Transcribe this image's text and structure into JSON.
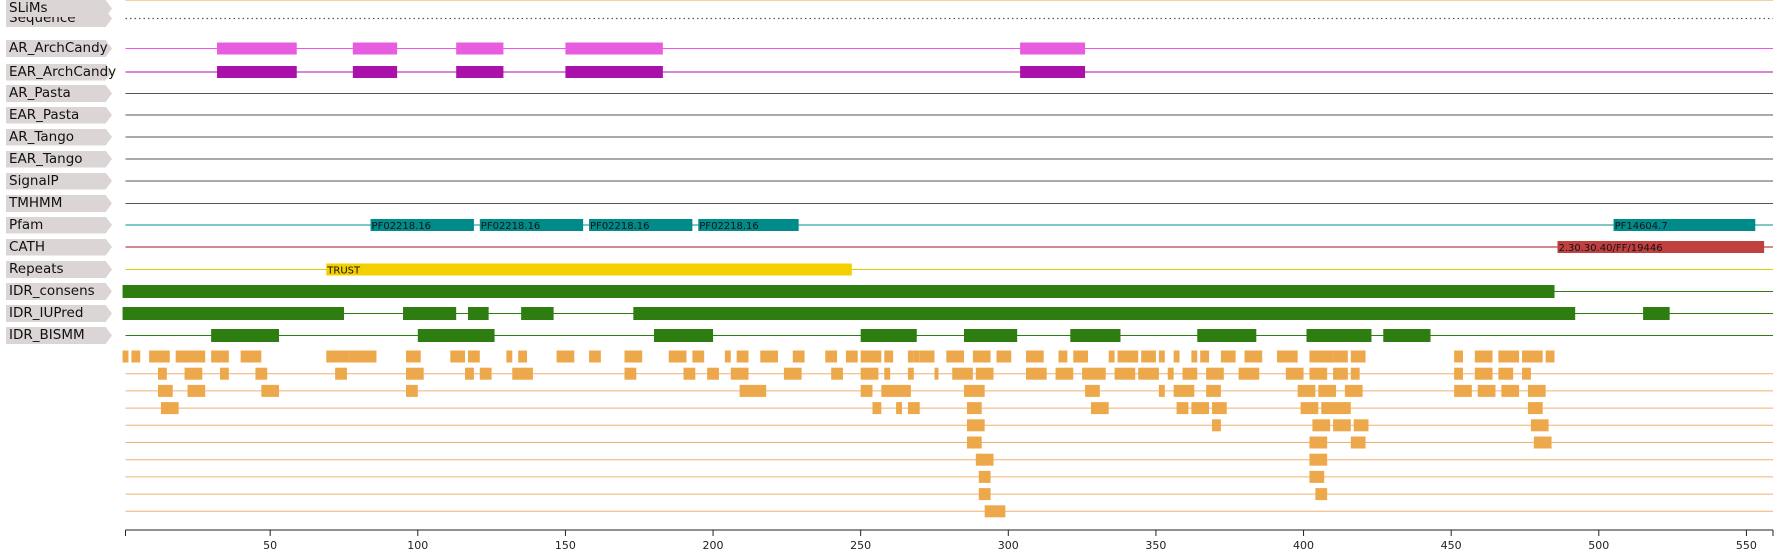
{
  "tracks": [
    {
      "id": "sequence",
      "label": "Sequence",
      "line_color": "#555555",
      "line_style": "dotted",
      "features": []
    },
    {
      "id": "ar_archcandy",
      "label": "AR_ArchCandy",
      "line_color": "#ee55ee",
      "features": [
        {
          "start": 32,
          "end": 59,
          "color": "#e85ce0"
        },
        {
          "start": 78,
          "end": 93,
          "color": "#e85ce0"
        },
        {
          "start": 113,
          "end": 129,
          "color": "#e85ce0"
        },
        {
          "start": 150,
          "end": 183,
          "color": "#e85ce0"
        },
        {
          "start": 304,
          "end": 326,
          "color": "#e85ce0"
        }
      ]
    },
    {
      "id": "ear_archcandy",
      "label": "EAR_ArchCandy",
      "line_color": "#aa10aa",
      "features": [
        {
          "start": 32,
          "end": 59,
          "color": "#aa10aa"
        },
        {
          "start": 78,
          "end": 93,
          "color": "#aa10aa"
        },
        {
          "start": 113,
          "end": 129,
          "color": "#aa10aa"
        },
        {
          "start": 150,
          "end": 183,
          "color": "#aa10aa"
        },
        {
          "start": 304,
          "end": 326,
          "color": "#aa10aa"
        }
      ]
    },
    {
      "id": "ar_pasta",
      "label": "AR_Pasta",
      "line_color": "#555555",
      "features": []
    },
    {
      "id": "ear_pasta",
      "label": "EAR_Pasta",
      "line_color": "#555555",
      "features": []
    },
    {
      "id": "ar_tango",
      "label": "AR_Tango",
      "line_color": "#555555",
      "features": []
    },
    {
      "id": "ear_tango",
      "label": "EAR_Tango",
      "line_color": "#555555",
      "features": []
    },
    {
      "id": "signalp",
      "label": "SignalP",
      "line_color": "#555555",
      "features": []
    },
    {
      "id": "tmhmm",
      "label": "TMHMM",
      "line_color": "#555555",
      "features": []
    },
    {
      "id": "pfam",
      "label": "Pfam",
      "line_color": "#009090",
      "features": [
        {
          "start": 84,
          "end": 119,
          "label": "PF02218.16",
          "color": "#008b8b"
        },
        {
          "start": 121,
          "end": 156,
          "label": "PF02218.16",
          "color": "#008b8b"
        },
        {
          "start": 158,
          "end": 193,
          "label": "PF02218.16",
          "color": "#008b8b"
        },
        {
          "start": 195,
          "end": 229,
          "label": "PF02218.16",
          "color": "#008b8b"
        },
        {
          "start": 505,
          "end": 553,
          "label": "PF14604.7",
          "color": "#008b8b"
        }
      ]
    },
    {
      "id": "cath",
      "label": "CATH",
      "line_color": "#a01818",
      "features": [
        {
          "start": 486,
          "end": 556,
          "label": "2.30.30.40/FF/19446",
          "color": "#c04040"
        }
      ]
    },
    {
      "id": "repeats",
      "label": "Repeats",
      "line_color": "#ddcc00",
      "features": [
        {
          "start": 69,
          "end": 247,
          "label": "TRUST",
          "color": "#f5d000"
        }
      ]
    },
    {
      "id": "idr_consens",
      "label": "IDR_consens",
      "line_color": "#2e7d10",
      "features": [
        {
          "start": 0,
          "end": 485,
          "color": "#2e7d10"
        }
      ]
    },
    {
      "id": "idr_iupred",
      "label": "IDR_IUPred",
      "line_color": "#2e7d10",
      "features": [
        {
          "start": 0,
          "end": 75,
          "color": "#2e7d10"
        },
        {
          "start": 95,
          "end": 113,
          "color": "#2e7d10"
        },
        {
          "start": 117,
          "end": 124,
          "color": "#2e7d10"
        },
        {
          "start": 135,
          "end": 146,
          "color": "#2e7d10"
        },
        {
          "start": 173,
          "end": 492,
          "color": "#2e7d10"
        },
        {
          "start": 515,
          "end": 524,
          "color": "#2e7d10"
        }
      ]
    },
    {
      "id": "idr_bismm",
      "label": "IDR_BISMM",
      "line_color": "#2e7d10",
      "features": [
        {
          "start": 30,
          "end": 53,
          "color": "#2e7d10"
        },
        {
          "start": 100,
          "end": 126,
          "color": "#2e7d10"
        },
        {
          "start": 180,
          "end": 200,
          "color": "#2e7d10"
        },
        {
          "start": 250,
          "end": 269,
          "color": "#2e7d10"
        },
        {
          "start": 285,
          "end": 303,
          "color": "#2e7d10"
        },
        {
          "start": 321,
          "end": 338,
          "color": "#2e7d10"
        },
        {
          "start": 364,
          "end": 384,
          "color": "#2e7d10"
        },
        {
          "start": 401,
          "end": 423,
          "color": "#2e7d10"
        },
        {
          "start": 427,
          "end": 443,
          "color": "#2e7d10"
        }
      ]
    },
    {
      "id": "slims",
      "label": "SLiMs",
      "line_color": "#f0a040",
      "features": []
    }
  ],
  "slims": {
    "color": "#eea84c",
    "line_color": "#f2b070",
    "rows": [
      [
        [
          0,
          2
        ],
        [
          3,
          6
        ],
        [
          9,
          16
        ],
        [
          18,
          28
        ],
        [
          30,
          36
        ],
        [
          40,
          47
        ],
        [
          69,
          77
        ],
        [
          77,
          86
        ],
        [
          96,
          101
        ],
        [
          111,
          116
        ],
        [
          117,
          121
        ],
        [
          130,
          132
        ],
        [
          134,
          137
        ],
        [
          147,
          153
        ],
        [
          158,
          162
        ],
        [
          170,
          176
        ],
        [
          185,
          191
        ],
        [
          193,
          197
        ],
        [
          204,
          206
        ],
        [
          208,
          212
        ],
        [
          216,
          222
        ],
        [
          227,
          231
        ],
        [
          238,
          242
        ],
        [
          245,
          249
        ],
        [
          250,
          257
        ],
        [
          258,
          261
        ],
        [
          266,
          268
        ],
        [
          268,
          270
        ],
        [
          270,
          274
        ],
        [
          273,
          275
        ],
        [
          279,
          285
        ],
        [
          288,
          294
        ],
        [
          296,
          301
        ],
        [
          306,
          312
        ],
        [
          317,
          320
        ],
        [
          322,
          327
        ],
        [
          334,
          336
        ],
        [
          337,
          344
        ],
        [
          345,
          350
        ],
        [
          351,
          353
        ],
        [
          356,
          358
        ],
        [
          362,
          364
        ],
        [
          365,
          368
        ],
        [
          372,
          377
        ],
        [
          380,
          386
        ],
        [
          391,
          398
        ],
        [
          402,
          410
        ],
        [
          410,
          415
        ],
        [
          416,
          421
        ],
        [
          451,
          454
        ],
        [
          458,
          464
        ],
        [
          466,
          473
        ],
        [
          474,
          481
        ],
        [
          482,
          485
        ]
      ],
      [
        [
          12,
          15
        ],
        [
          21,
          27
        ],
        [
          33,
          36
        ],
        [
          45,
          49
        ],
        [
          72,
          76
        ],
        [
          96,
          102
        ],
        [
          116,
          119
        ],
        [
          121,
          125
        ],
        [
          132,
          139
        ],
        [
          170,
          174
        ],
        [
          190,
          194
        ],
        [
          198,
          202
        ],
        [
          206,
          212
        ],
        [
          224,
          230
        ],
        [
          240,
          244
        ],
        [
          250,
          256
        ],
        [
          258,
          260
        ],
        [
          266,
          268
        ],
        [
          275,
          276
        ],
        [
          281,
          288
        ],
        [
          289,
          295
        ],
        [
          306,
          313
        ],
        [
          316,
          322
        ],
        [
          325,
          333
        ],
        [
          336,
          343
        ],
        [
          344,
          351
        ],
        [
          354,
          356
        ],
        [
          359,
          364
        ],
        [
          367,
          373
        ],
        [
          378,
          385
        ],
        [
          394,
          400
        ],
        [
          402,
          408
        ],
        [
          410,
          415
        ],
        [
          416,
          419
        ],
        [
          451,
          454
        ],
        [
          458,
          464
        ],
        [
          466,
          471
        ],
        [
          474,
          477
        ]
      ],
      [
        [
          12,
          17
        ],
        [
          22,
          28
        ],
        [
          47,
          53
        ],
        [
          96,
          100
        ],
        [
          209,
          218
        ],
        [
          250,
          254
        ],
        [
          257,
          267
        ],
        [
          285,
          292
        ],
        [
          326,
          331
        ],
        [
          351,
          353
        ],
        [
          356,
          363
        ],
        [
          367,
          372
        ],
        [
          398,
          404
        ],
        [
          405,
          411
        ],
        [
          414,
          420
        ],
        [
          451,
          457
        ],
        [
          459,
          465
        ],
        [
          467,
          473
        ],
        [
          476,
          482
        ]
      ],
      [
        [
          13,
          19
        ],
        [
          254,
          257
        ],
        [
          262,
          264
        ],
        [
          266,
          270
        ],
        [
          286,
          291
        ],
        [
          328,
          334
        ],
        [
          357,
          361
        ],
        [
          362,
          368
        ],
        [
          369,
          374
        ],
        [
          399,
          405
        ],
        [
          406,
          416
        ],
        [
          476,
          481
        ]
      ],
      [
        [
          286,
          292
        ],
        [
          369,
          372
        ],
        [
          403,
          409
        ],
        [
          410,
          416
        ],
        [
          417,
          422
        ],
        [
          477,
          483
        ]
      ],
      [
        [
          286,
          291
        ],
        [
          402,
          408
        ],
        [
          416,
          421
        ],
        [
          478,
          484
        ]
      ],
      [
        [
          289,
          295
        ],
        [
          402,
          408
        ]
      ],
      [
        [
          290,
          294
        ],
        [
          402,
          407
        ]
      ],
      [
        [
          290,
          294
        ],
        [
          404,
          408
        ]
      ],
      [
        [
          292,
          299
        ]
      ]
    ]
  },
  "axis": {
    "min": 1,
    "max": 559,
    "ticks": [
      50,
      100,
      150,
      200,
      250,
      300,
      350,
      400,
      450,
      500,
      550
    ],
    "tick_labels": [
      "50",
      "100",
      "150",
      "200",
      "250",
      "300",
      "350",
      "400",
      "450",
      "500",
      "550"
    ]
  }
}
